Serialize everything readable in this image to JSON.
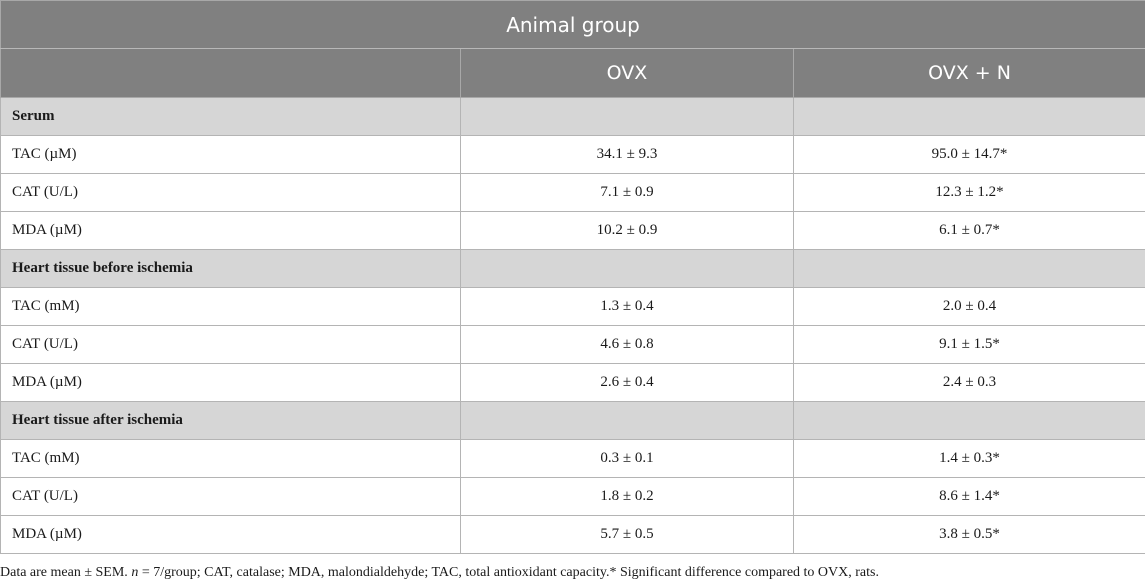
{
  "table": {
    "group_title": "Animal group",
    "columns": [
      "",
      "OVX",
      "OVX + N"
    ],
    "sections": [
      {
        "title": "Serum",
        "rows": [
          {
            "label": "TAC (µM)",
            "ovx": "34.1 ± 9.3",
            "ovx_n": "95.0 ± 14.7*"
          },
          {
            "label": "CAT (U/L)",
            "ovx": "7.1 ± 0.9",
            "ovx_n": "12.3 ± 1.2*"
          },
          {
            "label": "MDA (µM)",
            "ovx": "10.2 ± 0.9",
            "ovx_n": "6.1 ± 0.7*"
          }
        ]
      },
      {
        "title": "Heart tissue before ischemia",
        "rows": [
          {
            "label": "TAC (mM)",
            "ovx": "1.3 ± 0.4",
            "ovx_n": "2.0 ± 0.4"
          },
          {
            "label": "CAT (U/L)",
            "ovx": "4.6 ± 0.8",
            "ovx_n": "9.1 ± 1.5*"
          },
          {
            "label": "MDA (µM)",
            "ovx": "2.6 ± 0.4",
            "ovx_n": "2.4 ± 0.3"
          }
        ]
      },
      {
        "title": "Heart tissue after ischemia",
        "rows": [
          {
            "label": "TAC (mM)",
            "ovx": "0.3 ± 0.1",
            "ovx_n": "1.4 ± 0.3*"
          },
          {
            "label": "CAT (U/L)",
            "ovx": "1.8 ± 0.2",
            "ovx_n": "8.6 ± 1.4*"
          },
          {
            "label": "MDA (µM)",
            "ovx": "5.7 ± 0.5",
            "ovx_n": "3.8 ± 0.5*"
          }
        ]
      }
    ]
  },
  "footnote": {
    "part1": "Data are mean ± SEM. ",
    "n_symbol": "n",
    "part2": " = 7/group; CAT, catalase; MDA, malondialdehyde; TAC, total antioxidant capacity.* Significant difference compared to OVX, rats."
  },
  "colors": {
    "header_bg": "#808080",
    "section_bg": "#d6d6d6",
    "header_text": "#ffffff"
  }
}
